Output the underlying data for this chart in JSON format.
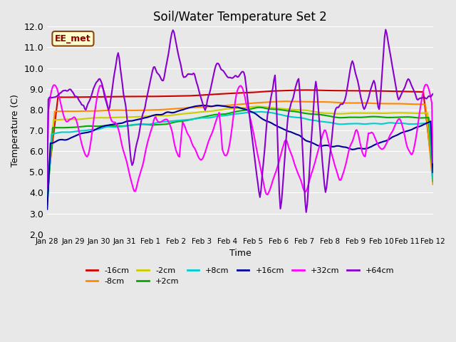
{
  "title": "Soil/Water Temperature Set 2",
  "xlabel": "Time",
  "ylabel": "Temperature (C)",
  "ylim": [
    2.0,
    12.0
  ],
  "yticks": [
    2.0,
    3.0,
    4.0,
    5.0,
    6.0,
    7.0,
    8.0,
    9.0,
    10.0,
    11.0,
    12.0
  ],
  "bg_color": "#e8e8e8",
  "plot_bg": "#e8e8e8",
  "grid_color": "#ffffff",
  "annotation_text": "EE_met",
  "annotation_bg": "#ffffcc",
  "annotation_border": "#8b4513",
  "series": {
    "-16cm": {
      "color": "#cc0000",
      "lw": 1.5
    },
    "-8cm": {
      "color": "#ff8800",
      "lw": 1.5
    },
    "-2cm": {
      "color": "#cccc00",
      "lw": 1.5
    },
    "+2cm": {
      "color": "#00aa00",
      "lw": 1.5
    },
    "+8cm": {
      "color": "#00cccc",
      "lw": 1.5
    },
    "+16cm": {
      "color": "#000099",
      "lw": 1.5
    },
    "+32cm": {
      "color": "#ff00ff",
      "lw": 1.5
    },
    "+64cm": {
      "color": "#8800cc",
      "lw": 1.5
    }
  },
  "date_labels": [
    "Jan 28",
    "Jan 29",
    "Jan 30",
    "Jan 31",
    "Feb 1",
    "Feb 2",
    "Feb 3",
    "Feb 4",
    "Feb 5",
    "Feb 6",
    "Feb 7",
    "Feb 8",
    "Feb 9",
    "Feb 10",
    "Feb 11",
    "Feb 12"
  ],
  "date_ticks": [
    0,
    1,
    2,
    3,
    4,
    5,
    6,
    7,
    8,
    9,
    10,
    11,
    12,
    13,
    14,
    15
  ]
}
